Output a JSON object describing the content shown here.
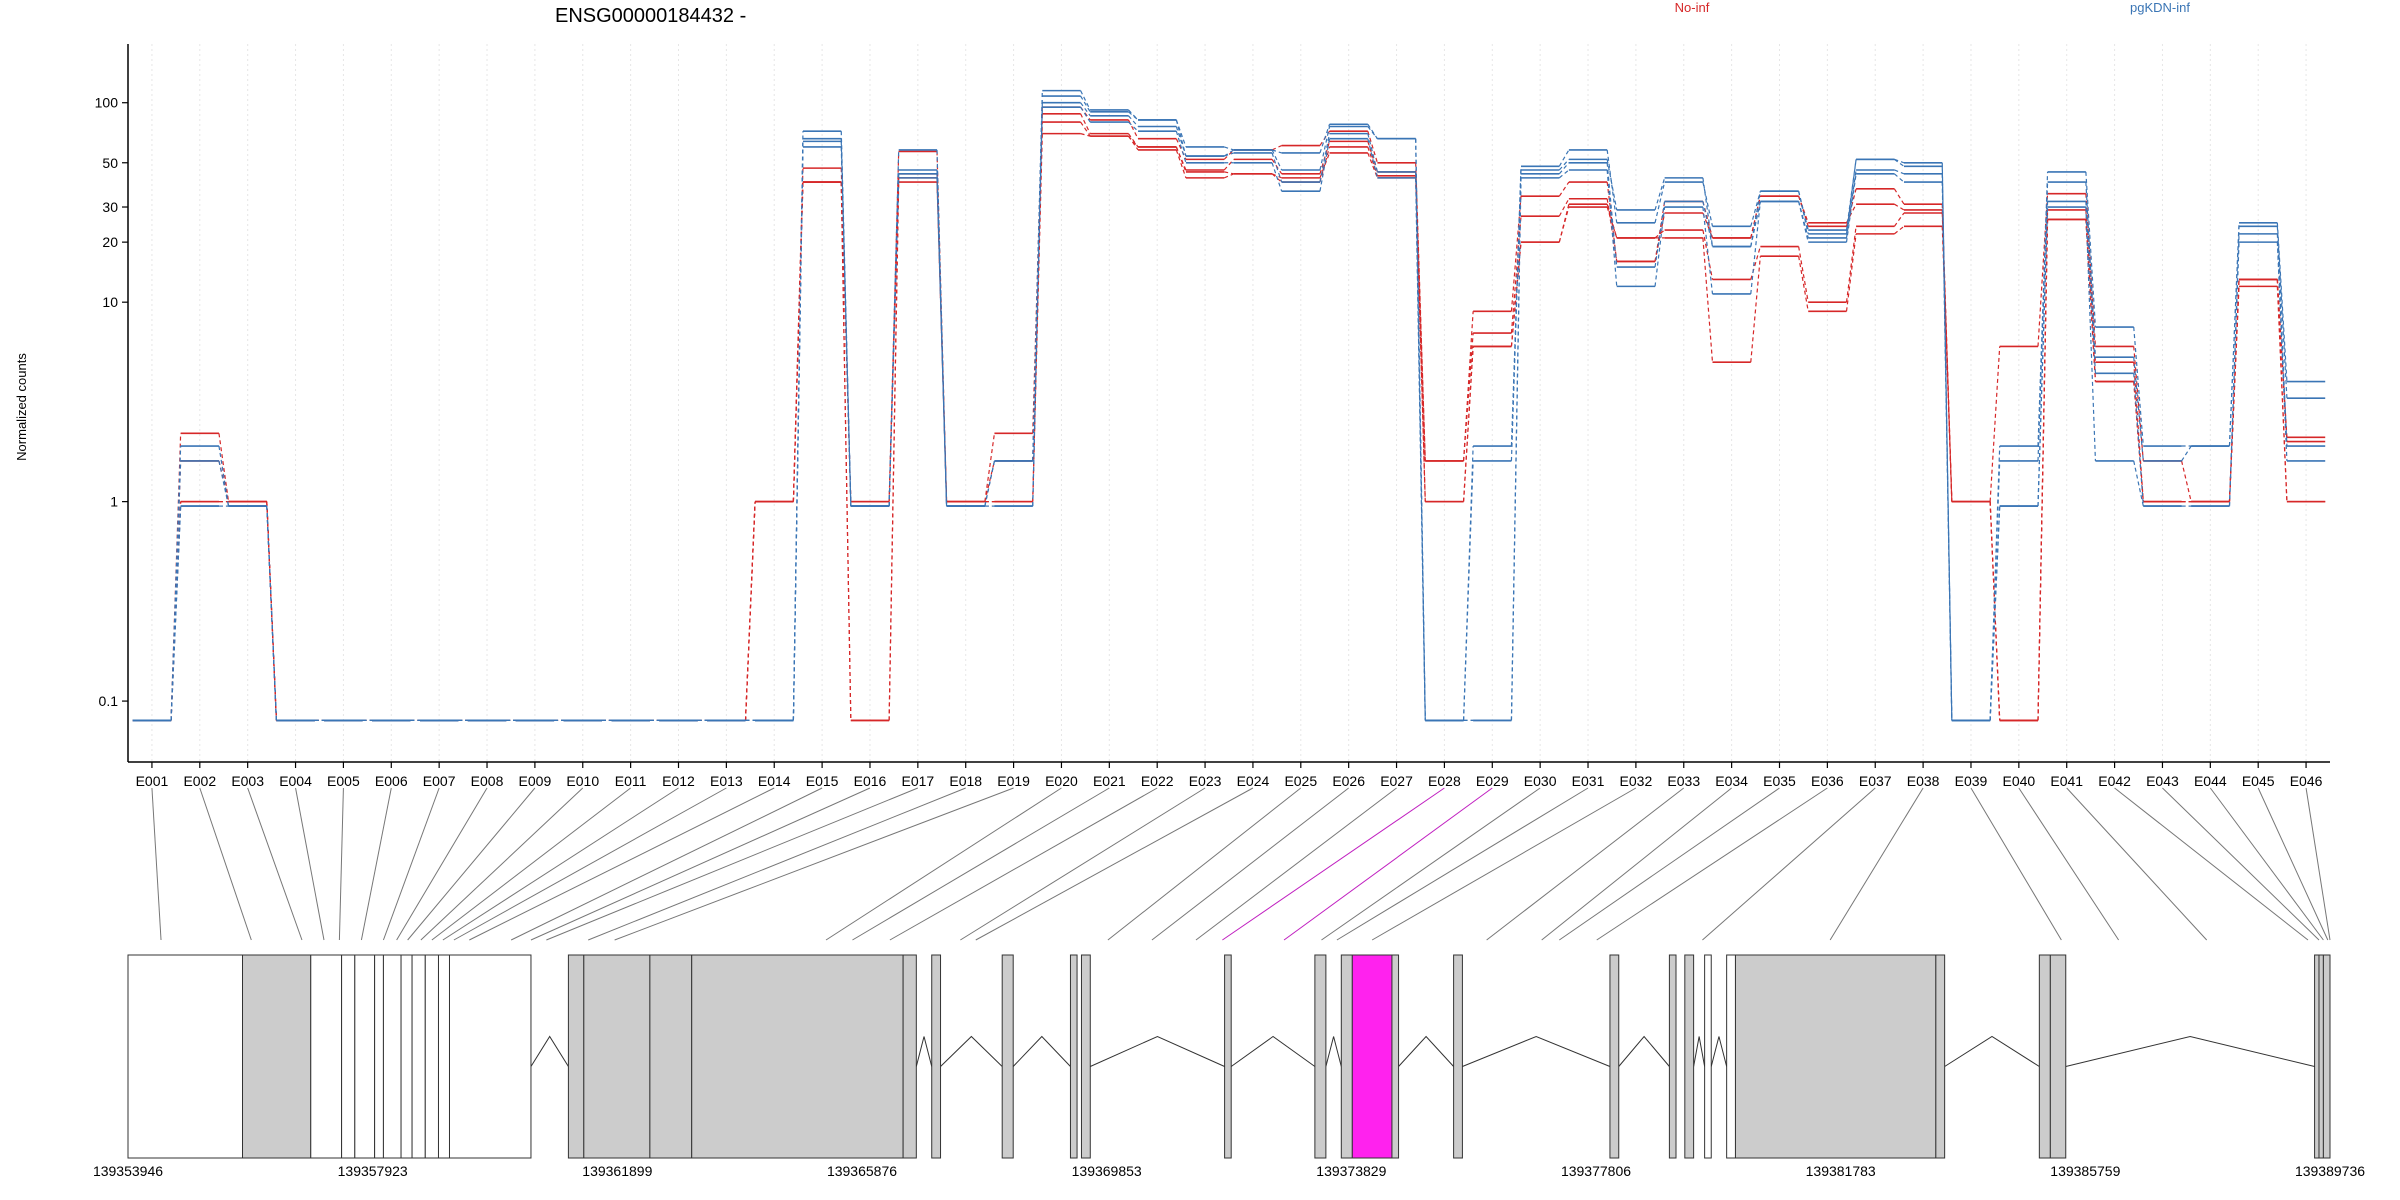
{
  "chart_data": {
    "type": "line",
    "title": "ENSG00000184432 -",
    "ylabel": "Normalized counts",
    "y_scale": "log",
    "ylim": [
      0.075,
      130
    ],
    "y_ticks": [
      0.1,
      1,
      10,
      20,
      30,
      50,
      100
    ],
    "y_tick_labels": [
      "0.1",
      "1",
      "10",
      "20",
      "30",
      "50",
      "100"
    ],
    "grid": "vertical dotted lines at each exon",
    "legend_position": "top",
    "exons": [
      "E001",
      "E002",
      "E003",
      "E004",
      "E005",
      "E006",
      "E007",
      "E008",
      "E009",
      "E010",
      "E011",
      "E012",
      "E013",
      "E014",
      "E015",
      "E016",
      "E017",
      "E018",
      "E019",
      "E020",
      "E021",
      "E022",
      "E023",
      "E024",
      "E025",
      "E026",
      "E027",
      "E028",
      "E029",
      "E030",
      "E031",
      "E032",
      "E033",
      "E034",
      "E035",
      "E036",
      "E037",
      "E038",
      "E039",
      "E040",
      "E041",
      "E042",
      "E043",
      "E044",
      "E045",
      "E046"
    ],
    "series": [
      {
        "name": "No-inf",
        "color": "#d62728",
        "values": [
          0.08,
          2.2,
          1.0,
          0.08,
          0.08,
          0.08,
          0.08,
          0.08,
          0.08,
          0.08,
          0.08,
          0.08,
          0.08,
          1.0,
          47,
          1.0,
          57,
          1.0,
          2.2,
          95,
          82,
          66,
          52,
          58,
          61,
          72,
          50,
          1.6,
          9,
          34,
          40,
          16,
          32,
          21,
          34,
          24,
          37,
          31,
          1.0,
          6,
          35,
          6,
          1.6,
          1.0,
          13,
          2.1
        ]
      },
      {
        "name": "No-inf",
        "color": "#d62728",
        "values": [
          0.08,
          1.6,
          1.0,
          0.08,
          0.08,
          0.08,
          0.08,
          0.08,
          0.08,
          0.08,
          0.08,
          0.08,
          0.08,
          1.0,
          40,
          0.08,
          44,
          1.0,
          1.6,
          88,
          70,
          60,
          46,
          52,
          44,
          64,
          45,
          1.6,
          7,
          27,
          33,
          16,
          28,
          21,
          34,
          25,
          31,
          29,
          1.0,
          0.08,
          29,
          5,
          1.0,
          1.0,
          13,
          2.0
        ]
      },
      {
        "name": "No-inf",
        "color": "#d62728",
        "values": [
          0.08,
          1.0,
          1.0,
          0.08,
          0.08,
          0.08,
          0.08,
          0.08,
          0.08,
          0.08,
          0.08,
          0.08,
          0.08,
          1.0,
          40,
          0.08,
          40,
          1.0,
          1.0,
          80,
          68,
          58,
          42,
          44,
          40,
          60,
          43,
          1.0,
          6,
          20,
          31,
          21,
          23,
          13,
          19,
          10,
          24,
          28,
          1.0,
          0.08,
          26,
          4,
          1.0,
          1.0,
          13,
          1.0
        ]
      },
      {
        "name": "No-inf",
        "color": "#d62728",
        "values": [
          0.08,
          1.0,
          1.0,
          0.08,
          0.08,
          0.08,
          0.08,
          0.08,
          0.08,
          0.08,
          0.08,
          0.08,
          0.08,
          1.0,
          40,
          1.0,
          42,
          1.0,
          1.0,
          70,
          68,
          60,
          45,
          44,
          42,
          56,
          42,
          1.0,
          6,
          20,
          30,
          21,
          21,
          5,
          17,
          9,
          22,
          24,
          1.0,
          0.08,
          26,
          4,
          1.0,
          1.0,
          12,
          1.0
        ]
      },
      {
        "name": "pgKDN-inf",
        "color": "#3a75b5",
        "values": [
          0.08,
          1.9,
          0.95,
          0.08,
          0.08,
          0.08,
          0.08,
          0.08,
          0.08,
          0.08,
          0.08,
          0.08,
          0.08,
          0.08,
          72,
          0.95,
          58,
          0.95,
          1.6,
          115,
          92,
          82,
          60,
          58,
          56,
          78,
          66,
          0.08,
          1.9,
          48,
          58,
          25,
          40,
          24,
          36,
          23,
          52,
          50,
          0.08,
          1.9,
          45,
          7.5,
          1.9,
          1.9,
          25,
          4.0
        ]
      },
      {
        "name": "pgKDN-inf",
        "color": "#3a75b5",
        "values": [
          0.08,
          1.6,
          0.95,
          0.08,
          0.08,
          0.08,
          0.08,
          0.08,
          0.08,
          0.08,
          0.08,
          0.08,
          0.08,
          0.08,
          66,
          0.95,
          46,
          0.95,
          1.6,
          108,
          90,
          82,
          54,
          58,
          46,
          76,
          66,
          0.08,
          1.6,
          46,
          52,
          29,
          42,
          19,
          36,
          22,
          52,
          48,
          0.08,
          1.6,
          40,
          5.3,
          1.6,
          1.9,
          24,
          3.3
        ]
      },
      {
        "name": "pgKDN-inf",
        "color": "#3a75b5",
        "values": [
          0.08,
          0.95,
          0.95,
          0.08,
          0.08,
          0.08,
          0.08,
          0.08,
          0.08,
          0.08,
          0.08,
          0.08,
          0.08,
          0.08,
          64,
          0.95,
          44,
          0.95,
          0.95,
          100,
          86,
          76,
          54,
          56,
          40,
          70,
          45,
          0.08,
          0.08,
          44,
          50,
          15,
          32,
          19,
          32,
          21,
          46,
          44,
          0.08,
          0.95,
          32,
          4.4,
          0.95,
          0.95,
          22,
          1.9
        ]
      },
      {
        "name": "pgKDN-inf",
        "color": "#3a75b5",
        "values": [
          0.08,
          0.95,
          0.95,
          0.08,
          0.08,
          0.08,
          0.08,
          0.08,
          0.08,
          0.08,
          0.08,
          0.08,
          0.08,
          0.08,
          60,
          0.95,
          42,
          0.95,
          0.95,
          95,
          80,
          72,
          50,
          50,
          36,
          66,
          42,
          0.08,
          0.08,
          42,
          46,
          12,
          30,
          11,
          32,
          20,
          44,
          40,
          0.08,
          0.95,
          30,
          1.6,
          0.95,
          0.95,
          20,
          1.6
        ]
      }
    ],
    "gene_model": {
      "coordinate_labels": [
        "139353946",
        "139357923",
        "139361899",
        "139365876",
        "139369853",
        "139373829",
        "139377806",
        "139381783",
        "139385759",
        "139389736"
      ],
      "highlight_color": "#ff22ee"
    }
  }
}
